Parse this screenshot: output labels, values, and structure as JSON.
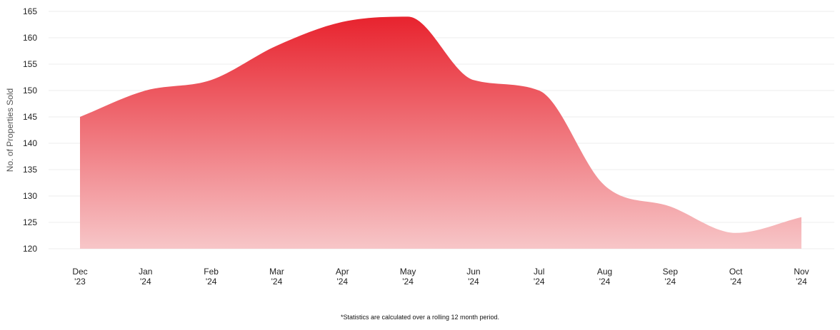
{
  "chart_data": {
    "type": "area",
    "title": "",
    "xlabel": "",
    "ylabel": "No. of Properties Sold",
    "categories": [
      {
        "month": "Dec",
        "year": "'23"
      },
      {
        "month": "Jan",
        "year": "'24"
      },
      {
        "month": "Feb",
        "year": "'24"
      },
      {
        "month": "Mar",
        "year": "'24"
      },
      {
        "month": "Apr",
        "year": "'24"
      },
      {
        "month": "May",
        "year": "'24"
      },
      {
        "month": "Jun",
        "year": "'24"
      },
      {
        "month": "Jul",
        "year": "'24"
      },
      {
        "month": "Aug",
        "year": "'24"
      },
      {
        "month": "Sep",
        "year": "'24"
      },
      {
        "month": "Oct",
        "year": "'24"
      },
      {
        "month": "Nov",
        "year": "'24"
      }
    ],
    "values": [
      145,
      150,
      152,
      158.5,
      163,
      164,
      152,
      150,
      132,
      128,
      123,
      126
    ],
    "ylim": [
      120,
      165
    ],
    "yticks": [
      120,
      125,
      130,
      135,
      140,
      145,
      150,
      155,
      160,
      165
    ],
    "grid": true,
    "legend": "none",
    "colors": {
      "top": "#e8232e",
      "bottom": "#f7c6c8",
      "grid": "#eeeeee"
    }
  },
  "footnote": "*Statistics are calculated over a rolling 12 month period."
}
